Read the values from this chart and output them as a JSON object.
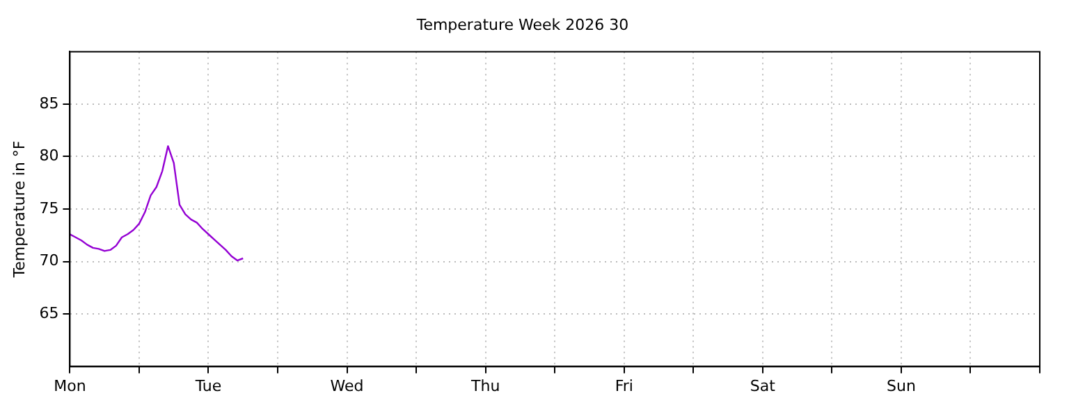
{
  "chart_data": {
    "type": "line",
    "title": "Temperature Week 2026 30",
    "ylabel": "Temperature in °F",
    "categories": [
      "Mon",
      null,
      null,
      null,
      null,
      null,
      null,
      null,
      null,
      null,
      null,
      null,
      null,
      null,
      null,
      null,
      null,
      null,
      null,
      null,
      null,
      null,
      null,
      null,
      "Tue",
      null,
      null,
      null,
      null,
      null,
      null,
      null,
      null,
      null,
      null,
      null,
      null,
      null,
      null,
      null,
      null,
      null,
      null,
      null,
      null,
      null,
      null,
      null,
      "Wed",
      null,
      null,
      null,
      null,
      null,
      null,
      null,
      null,
      null,
      null,
      null,
      null,
      null,
      null,
      null,
      null,
      null,
      null,
      null,
      null,
      null,
      null,
      null,
      "Thu",
      null,
      null,
      null,
      null,
      null,
      null,
      null,
      null,
      null,
      null,
      null,
      null,
      null,
      null,
      null,
      null,
      null,
      null,
      null,
      null,
      null,
      null,
      null,
      "Fri",
      null,
      null,
      null,
      null,
      null,
      null,
      null,
      null,
      null,
      null,
      null,
      null,
      null,
      null,
      null,
      null,
      null,
      null,
      null,
      null,
      null,
      null,
      null,
      "Sat",
      null,
      null,
      null,
      null,
      null,
      null,
      null,
      null,
      null,
      null,
      null,
      null,
      null,
      null,
      null,
      null,
      null,
      null,
      null,
      null,
      null,
      null,
      null,
      "Sun",
      null,
      null,
      null,
      null,
      null,
      null,
      null,
      null,
      null,
      null,
      null,
      null,
      null,
      null,
      null,
      null,
      null,
      null,
      null,
      null,
      null,
      null,
      null
    ],
    "series": [
      {
        "color": "#9400d3",
        "values": [
          72.6,
          72.3,
          72.0,
          71.6,
          71.3,
          71.2,
          71.0,
          71.1,
          71.5,
          72.3,
          72.6,
          73.0,
          73.6,
          74.7,
          76.3,
          77.1,
          78.6,
          81.0,
          79.4,
          75.4,
          74.5,
          74.0,
          73.7,
          73.1,
          72.6,
          72.1,
          71.6,
          71.1,
          70.5,
          70.1,
          70.3,
          null,
          null,
          null,
          null,
          null,
          null,
          null,
          null,
          null,
          null,
          null,
          null,
          null,
          null,
          null,
          null,
          null,
          null,
          null,
          null,
          null,
          null,
          null,
          null,
          null,
          null,
          null,
          null,
          null,
          null,
          null,
          null,
          null,
          null,
          null,
          null,
          null,
          null,
          null,
          null,
          null,
          null,
          null,
          null,
          null,
          null,
          null,
          null,
          null,
          null,
          null,
          null,
          null,
          null,
          null,
          null,
          null,
          null,
          null,
          null,
          null,
          null,
          null,
          null,
          null,
          null,
          null,
          null,
          null,
          null,
          null,
          null,
          null,
          null,
          null,
          null,
          null,
          null,
          null,
          null,
          null,
          null,
          null,
          null,
          null,
          null,
          null,
          null,
          null,
          null,
          null,
          null,
          null,
          null,
          null,
          null,
          null,
          null,
          null,
          null,
          null,
          null,
          null,
          null,
          null,
          null,
          null,
          null,
          null,
          null,
          null,
          null,
          null,
          null,
          null,
          null,
          null,
          null,
          null,
          null,
          null,
          null,
          null,
          null,
          null,
          null,
          null,
          null,
          null,
          null,
          null,
          null,
          null,
          null,
          null,
          null,
          null
        ]
      }
    ],
    "ylim": [
      60,
      90
    ],
    "yticks": [
      65,
      70,
      75,
      80,
      85
    ],
    "grid": true,
    "legend": false,
    "marker": "none",
    "line_style": "solid"
  }
}
